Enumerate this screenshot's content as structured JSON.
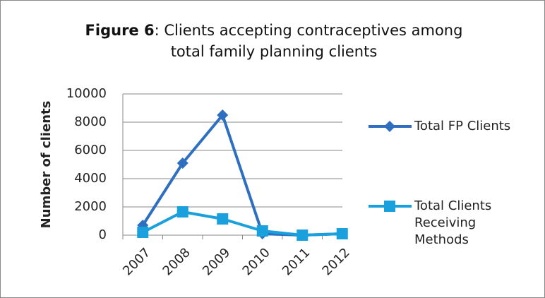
{
  "chart_data": {
    "type": "line",
    "title_label": "Figure 6",
    "title": ": Clients accepting contraceptives among total family planning clients",
    "y_label": "Number of clients",
    "categories": [
      "2007",
      "2008",
      "2009",
      "2010",
      "2011",
      "2012"
    ],
    "series": [
      {
        "name": "Total FP Clients",
        "color": "#2f6fbf",
        "marker": "diamond",
        "values": [
          700,
          5100,
          8500,
          100,
          0,
          100
        ]
      },
      {
        "name": "Total Clients Receiving Methods",
        "color": "#1aa0dc",
        "marker": "square",
        "values": [
          200,
          1650,
          1150,
          300,
          0,
          100
        ]
      }
    ],
    "ylim": [
      0,
      10000
    ],
    "yticks": [
      0,
      2000,
      4000,
      6000,
      8000,
      10000
    ],
    "grid": true,
    "legend": "right"
  }
}
